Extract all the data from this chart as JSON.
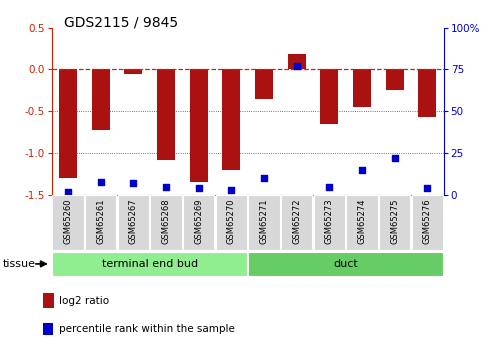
{
  "title": "GDS2115 / 9845",
  "samples": [
    "GSM65260",
    "GSM65261",
    "GSM65267",
    "GSM65268",
    "GSM65269",
    "GSM65270",
    "GSM65271",
    "GSM65272",
    "GSM65273",
    "GSM65274",
    "GSM65275",
    "GSM65276"
  ],
  "log2_ratio": [
    -1.3,
    -0.72,
    -0.06,
    -1.08,
    -1.35,
    -1.2,
    -0.35,
    0.18,
    -0.65,
    -0.45,
    -0.25,
    -0.57
  ],
  "percentile": [
    2,
    8,
    7,
    5,
    4,
    3,
    10,
    77,
    5,
    15,
    22,
    4
  ],
  "groups": [
    {
      "label": "terminal end bud",
      "start": 0,
      "end": 6,
      "color": "#90EE90"
    },
    {
      "label": "duct",
      "start": 6,
      "end": 12,
      "color": "#66CC66"
    }
  ],
  "bar_color": "#AA1111",
  "percentile_color": "#0000CC",
  "ylim_left": [
    -1.5,
    0.5
  ],
  "ylim_right": [
    0,
    100
  ],
  "yticks_left": [
    -1.5,
    -1.0,
    -0.5,
    0.0,
    0.5
  ],
  "yticks_right": [
    0,
    25,
    50,
    75,
    100
  ],
  "yticklabels_right": [
    "0",
    "25",
    "50",
    "75",
    "100%"
  ],
  "bg_color": "#ffffff",
  "plot_bg_color": "#ffffff",
  "tissue_label": "tissue",
  "legend_log2": "log2 ratio",
  "legend_pct": "percentile rank within the sample",
  "zero_line_color": "#CC2200",
  "grid_color": "#444444",
  "border_color": "#888888"
}
